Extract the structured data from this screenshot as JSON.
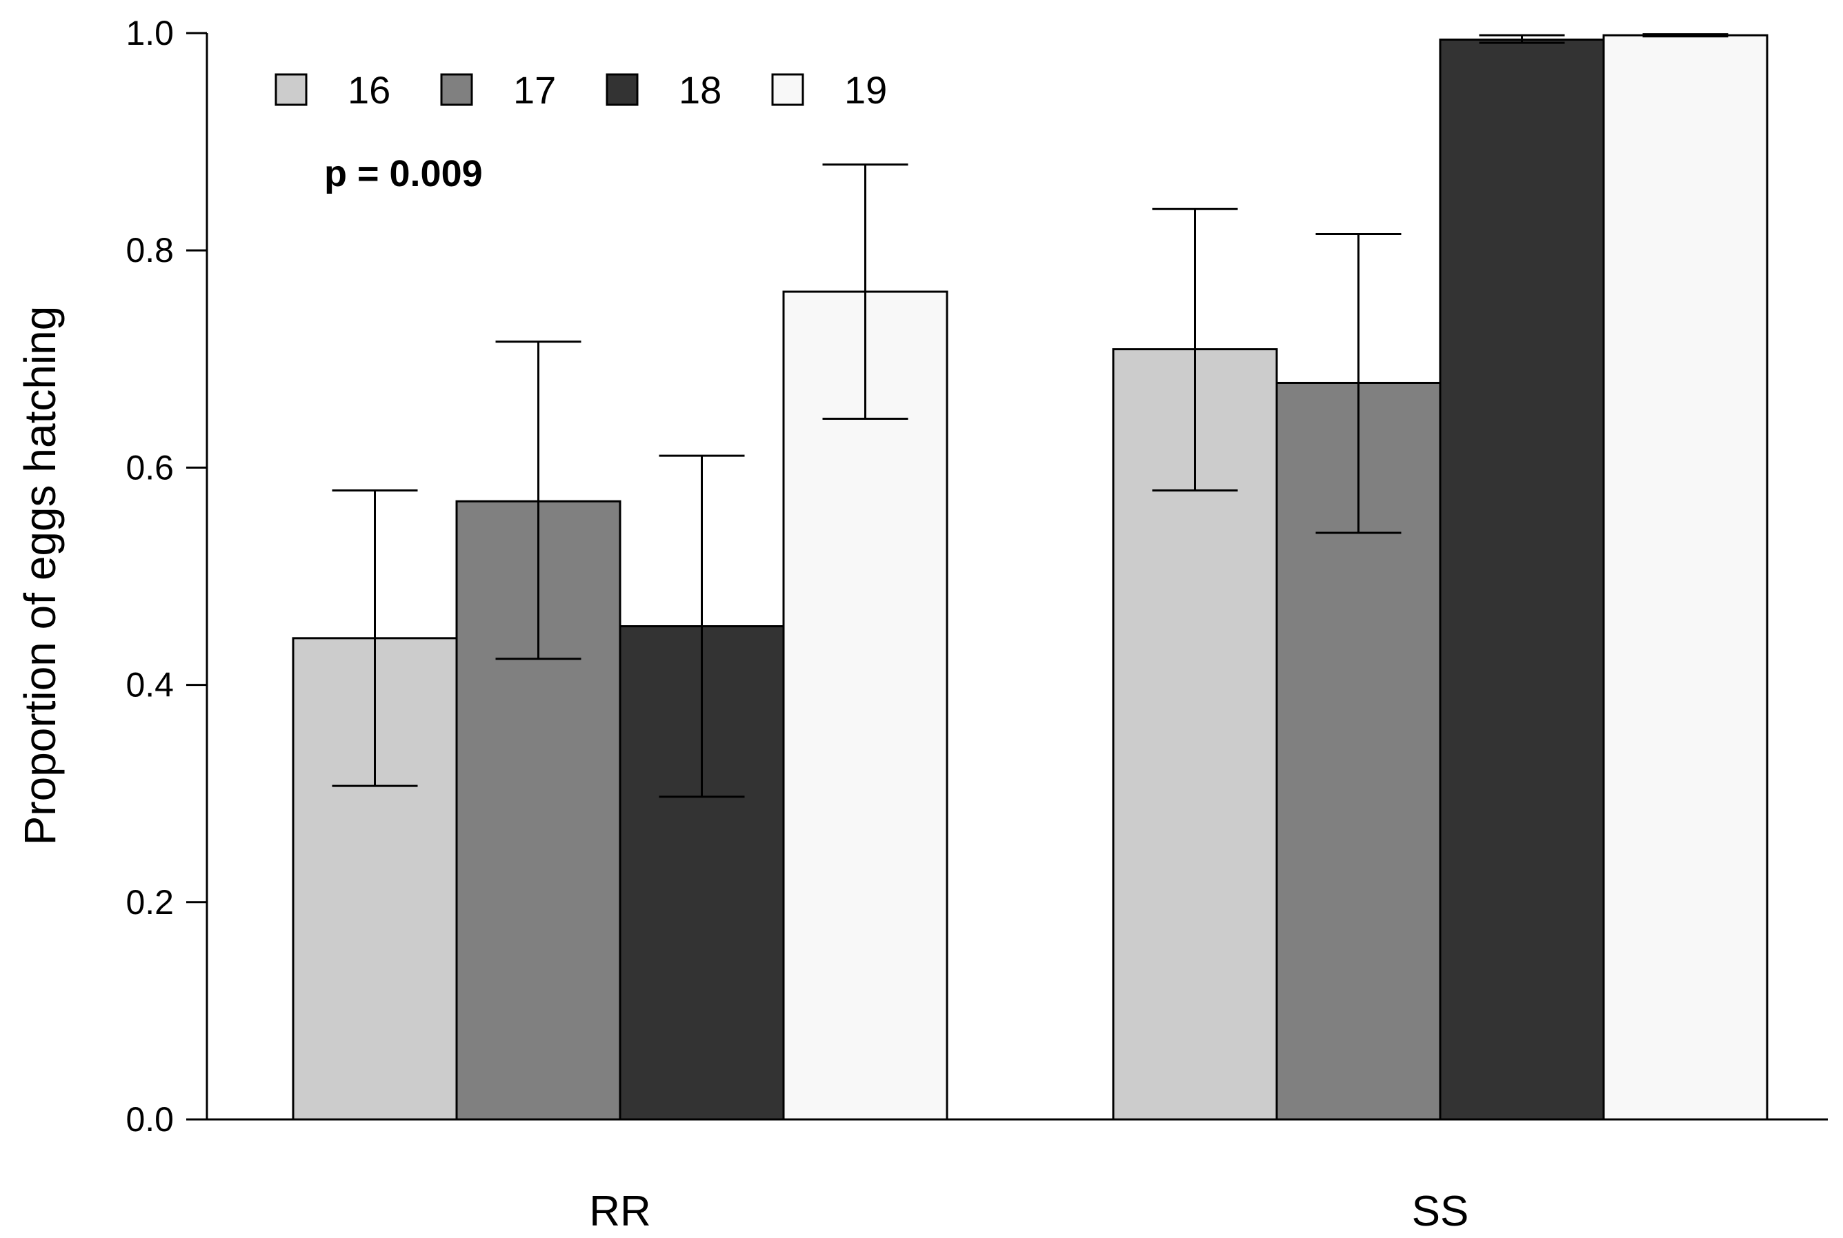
{
  "chart_data": {
    "type": "bar",
    "title": "",
    "xlabel": "",
    "ylabel": "Proportion of eggs hatching",
    "ylim": [
      0,
      1
    ],
    "yticks": [
      "0.0",
      "0.2",
      "0.4",
      "0.6",
      "0.8",
      "1.0"
    ],
    "categories": [
      "RR",
      "SS"
    ],
    "series": [
      {
        "name": "16",
        "color": "#cccccc",
        "values": [
          0.443,
          0.709
        ],
        "err_low": [
          0.307,
          0.579
        ],
        "err_high": [
          0.579,
          0.838
        ]
      },
      {
        "name": "17",
        "color": "#808080",
        "values": [
          0.569,
          0.678
        ],
        "err_low": [
          0.424,
          0.54
        ],
        "err_high": [
          0.716,
          0.815
        ]
      },
      {
        "name": "18",
        "color": "#333333",
        "values": [
          0.454,
          0.994
        ],
        "err_low": [
          0.297,
          0.991
        ],
        "err_high": [
          0.611,
          0.998
        ]
      },
      {
        "name": "19",
        "color": "#f8f8f8",
        "values": [
          0.762,
          0.998
        ],
        "err_low": [
          0.645,
          0.997
        ],
        "err_high": [
          0.879,
          0.999
        ]
      }
    ],
    "legend_position": "top-left",
    "annotations": [
      {
        "text": "p = 0.009"
      }
    ]
  }
}
